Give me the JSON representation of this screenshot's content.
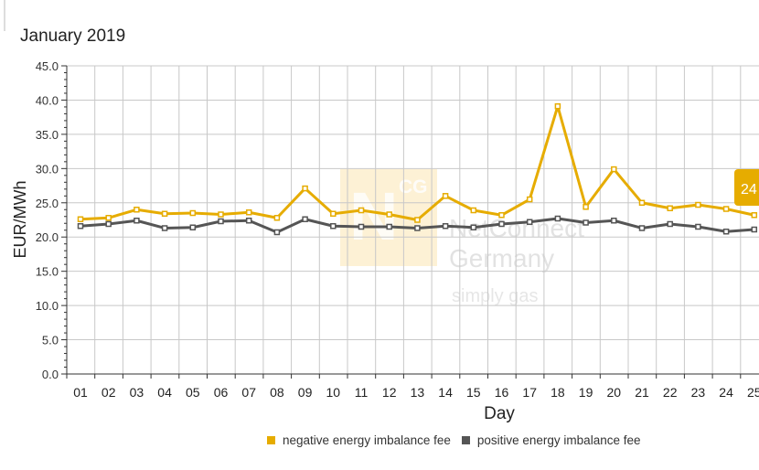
{
  "chart_data": {
    "type": "line",
    "title": "January 2019",
    "xlabel": "Day",
    "ylabel": "EUR/MWh",
    "categories": [
      "01",
      "02",
      "03",
      "04",
      "05",
      "06",
      "07",
      "08",
      "09",
      "10",
      "11",
      "12",
      "13",
      "14",
      "15",
      "16",
      "17",
      "18",
      "19",
      "20",
      "21",
      "22",
      "23",
      "24",
      "25"
    ],
    "yticks": [
      "0.0",
      "5.0",
      "10.0",
      "15.0",
      "20.0",
      "25.0",
      "30.0",
      "35.0",
      "40.0",
      "45.0"
    ],
    "ylim": [
      0,
      45
    ],
    "grid": true,
    "legend_position": "bottom",
    "series": [
      {
        "name": "negative energy imbalance fee",
        "color": "#e6ac00",
        "values": [
          22.6,
          22.8,
          24.0,
          23.4,
          23.5,
          23.3,
          23.6,
          22.8,
          27.1,
          23.4,
          23.9,
          23.3,
          22.5,
          26.0,
          23.9,
          23.2,
          25.5,
          39.1,
          24.4,
          29.9,
          25.0,
          24.2,
          24.7,
          24.1,
          23.2
        ]
      },
      {
        "name": "positive energy imbalance fee",
        "color": "#555555",
        "values": [
          21.6,
          21.9,
          22.4,
          21.3,
          21.4,
          22.3,
          22.4,
          20.7,
          22.6,
          21.6,
          21.5,
          21.5,
          21.3,
          21.6,
          21.4,
          21.9,
          22.2,
          22.7,
          22.1,
          22.4,
          21.3,
          21.9,
          21.5,
          20.8,
          21.1
        ]
      }
    ],
    "tooltip": {
      "text": "24",
      "color": "#e6ac00"
    },
    "watermark": {
      "letters": "NCG",
      "line1": "NetConnect",
      "line2": "Germany",
      "line3": "simply gas"
    }
  }
}
